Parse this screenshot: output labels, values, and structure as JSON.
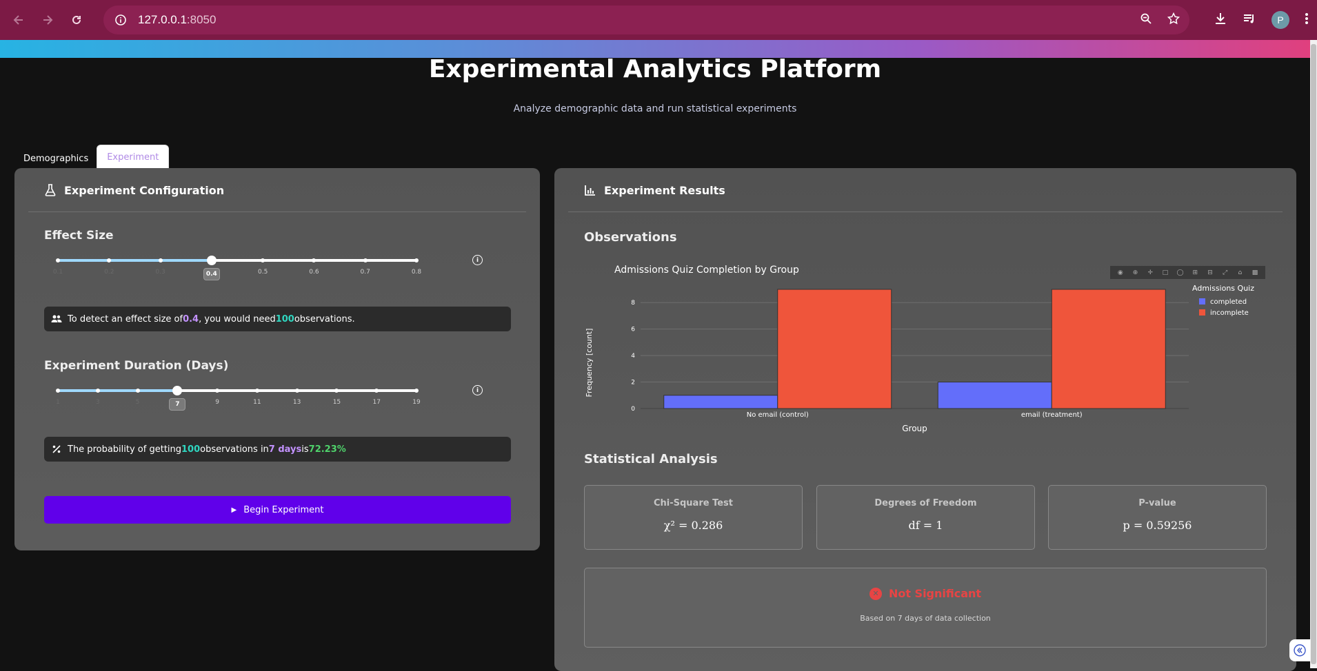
{
  "browser": {
    "url_host": "127.0.0.1",
    "url_port": ":8050",
    "profile_initial": "P"
  },
  "page": {
    "title": "Experimental Analytics Platform",
    "subtitle": "Analyze demographic data and run statistical experiments"
  },
  "tabs": [
    {
      "label": "Demographics",
      "active": false
    },
    {
      "label": "Experiment",
      "active": true
    }
  ],
  "config": {
    "heading": "Experiment Configuration",
    "effect_size": {
      "title": "Effect Size",
      "ticks": [
        "0.1",
        "0.2",
        "0.3",
        "0.4",
        "0.5",
        "0.6",
        "0.7",
        "0.8"
      ],
      "value": "0.4",
      "value_index": 3
    },
    "effect_note": {
      "pre": "To detect an effect size of ",
      "effect": "0.4",
      "mid": ", you would need ",
      "obs": "100",
      "post": " observations."
    },
    "duration": {
      "title": "Experiment Duration (Days)",
      "ticks": [
        "1",
        "3",
        "5",
        "7",
        "9",
        "11",
        "13",
        "15",
        "17",
        "19"
      ],
      "value": "7",
      "value_index": 3
    },
    "duration_note": {
      "pre": "The probability of getting ",
      "obs": "100",
      "mid": " observations in ",
      "days": "7 days",
      "is": " is ",
      "prob": "72.23%"
    },
    "begin_label": "Begin Experiment"
  },
  "results": {
    "heading": "Experiment Results",
    "observations_title": "Observations",
    "stat_title": "Statistical Analysis",
    "chi": {
      "label": "Chi-Square Test",
      "value": "χ² = 0.286"
    },
    "df": {
      "label": "Degrees of Freedom",
      "value": "df = 1"
    },
    "p": {
      "label": "P-value",
      "value": "p = 0.59256"
    },
    "significance": "Not Significant",
    "basis": "Based on 7 days of data collection"
  },
  "chart_data": {
    "type": "bar",
    "title": "Admissions Quiz Completion by Group",
    "xlabel": "Group",
    "ylabel": "Frequency [count]",
    "categories": [
      "No email (control)",
      "email (treatment)"
    ],
    "legend_title": "Admissions Quiz",
    "legend_placement": "top-right",
    "ylim": [
      0,
      9
    ],
    "yticks": [
      0,
      2,
      4,
      6,
      8
    ],
    "grid": true,
    "series": [
      {
        "name": "completed",
        "values": [
          1,
          2
        ],
        "color": "#636efa"
      },
      {
        "name": "incomplete",
        "values": [
          9,
          9
        ],
        "color": "#ef553b"
      }
    ]
  }
}
